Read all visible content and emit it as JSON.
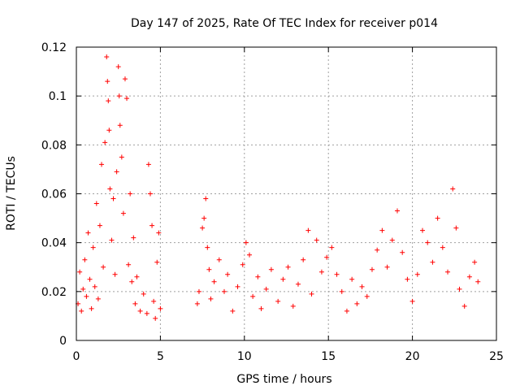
{
  "colors": {
    "series": "#ff0000",
    "grid": "#a0a0a0",
    "axis": "#000000",
    "background": "#ffffff"
  },
  "chart_data": {
    "type": "scatter",
    "title": "Day 147 of 2025, Rate Of TEC Index for receiver p014",
    "xlabel": "GPS time / hours",
    "ylabel": "ROTI / TECUs",
    "xlim": [
      0,
      25
    ],
    "ylim": [
      0,
      0.12
    ],
    "xticks": [
      0,
      5,
      10,
      15,
      20,
      25
    ],
    "xtick_labels": [
      "0",
      "5",
      "10",
      "15",
      "20",
      "25"
    ],
    "yticks": [
      0,
      0.02,
      0.04,
      0.06,
      0.08,
      0.1,
      0.12
    ],
    "ytick_labels": [
      "0",
      "0.02",
      "0.04",
      "0.06",
      "0.08",
      "0.1",
      "0.12"
    ],
    "grid": true,
    "marker": "+",
    "series": [
      {
        "name": "ROTI",
        "points": [
          [
            0.1,
            0.015
          ],
          [
            0.2,
            0.028
          ],
          [
            0.3,
            0.012
          ],
          [
            0.4,
            0.021
          ],
          [
            0.5,
            0.033
          ],
          [
            0.6,
            0.018
          ],
          [
            0.7,
            0.044
          ],
          [
            0.8,
            0.025
          ],
          [
            0.9,
            0.013
          ],
          [
            1.0,
            0.038
          ],
          [
            1.1,
            0.022
          ],
          [
            1.2,
            0.056
          ],
          [
            1.3,
            0.017
          ],
          [
            1.4,
            0.047
          ],
          [
            1.5,
            0.072
          ],
          [
            1.6,
            0.03
          ],
          [
            1.7,
            0.081
          ],
          [
            1.8,
            0.116
          ],
          [
            1.85,
            0.106
          ],
          [
            1.9,
            0.098
          ],
          [
            1.95,
            0.086
          ],
          [
            2.0,
            0.062
          ],
          [
            2.1,
            0.041
          ],
          [
            2.2,
            0.058
          ],
          [
            2.3,
            0.027
          ],
          [
            2.4,
            0.069
          ],
          [
            2.5,
            0.112
          ],
          [
            2.55,
            0.1
          ],
          [
            2.6,
            0.088
          ],
          [
            2.7,
            0.075
          ],
          [
            2.8,
            0.052
          ],
          [
            2.9,
            0.107
          ],
          [
            3.0,
            0.099
          ],
          [
            3.1,
            0.031
          ],
          [
            3.2,
            0.06
          ],
          [
            3.3,
            0.024
          ],
          [
            3.4,
            0.042
          ],
          [
            3.5,
            0.015
          ],
          [
            3.6,
            0.026
          ],
          [
            3.8,
            0.012
          ],
          [
            4.0,
            0.019
          ],
          [
            4.2,
            0.011
          ],
          [
            4.3,
            0.072
          ],
          [
            4.4,
            0.06
          ],
          [
            4.5,
            0.047
          ],
          [
            4.6,
            0.016
          ],
          [
            4.7,
            0.009
          ],
          [
            4.8,
            0.032
          ],
          [
            4.9,
            0.044
          ],
          [
            5.0,
            0.013
          ],
          [
            7.2,
            0.015
          ],
          [
            7.3,
            0.02
          ],
          [
            7.5,
            0.046
          ],
          [
            7.6,
            0.05
          ],
          [
            7.7,
            0.058
          ],
          [
            7.8,
            0.038
          ],
          [
            7.9,
            0.029
          ],
          [
            8.0,
            0.017
          ],
          [
            8.2,
            0.024
          ],
          [
            8.5,
            0.033
          ],
          [
            8.8,
            0.02
          ],
          [
            9.0,
            0.027
          ],
          [
            9.3,
            0.012
          ],
          [
            9.6,
            0.022
          ],
          [
            9.9,
            0.031
          ],
          [
            10.1,
            0.04
          ],
          [
            10.3,
            0.035
          ],
          [
            10.5,
            0.018
          ],
          [
            10.8,
            0.026
          ],
          [
            11.0,
            0.013
          ],
          [
            11.3,
            0.021
          ],
          [
            11.6,
            0.029
          ],
          [
            12.0,
            0.016
          ],
          [
            12.3,
            0.025
          ],
          [
            12.6,
            0.03
          ],
          [
            12.9,
            0.014
          ],
          [
            13.2,
            0.023
          ],
          [
            13.5,
            0.033
          ],
          [
            13.8,
            0.045
          ],
          [
            14.0,
            0.019
          ],
          [
            14.3,
            0.041
          ],
          [
            14.6,
            0.028
          ],
          [
            14.9,
            0.034
          ],
          [
            15.2,
            0.038
          ],
          [
            15.5,
            0.027
          ],
          [
            15.8,
            0.02
          ],
          [
            16.1,
            0.012
          ],
          [
            16.4,
            0.025
          ],
          [
            16.7,
            0.015
          ],
          [
            17.0,
            0.022
          ],
          [
            17.3,
            0.018
          ],
          [
            17.6,
            0.029
          ],
          [
            17.9,
            0.037
          ],
          [
            18.2,
            0.045
          ],
          [
            18.5,
            0.03
          ],
          [
            18.8,
            0.041
          ],
          [
            19.1,
            0.053
          ],
          [
            19.4,
            0.036
          ],
          [
            19.7,
            0.025
          ],
          [
            20.0,
            0.016
          ],
          [
            20.3,
            0.027
          ],
          [
            20.6,
            0.045
          ],
          [
            20.9,
            0.04
          ],
          [
            21.2,
            0.032
          ],
          [
            21.5,
            0.05
          ],
          [
            21.8,
            0.038
          ],
          [
            22.1,
            0.028
          ],
          [
            22.4,
            0.062
          ],
          [
            22.6,
            0.046
          ],
          [
            22.8,
            0.021
          ],
          [
            23.1,
            0.014
          ],
          [
            23.4,
            0.026
          ],
          [
            23.7,
            0.032
          ],
          [
            23.9,
            0.024
          ]
        ]
      }
    ]
  }
}
